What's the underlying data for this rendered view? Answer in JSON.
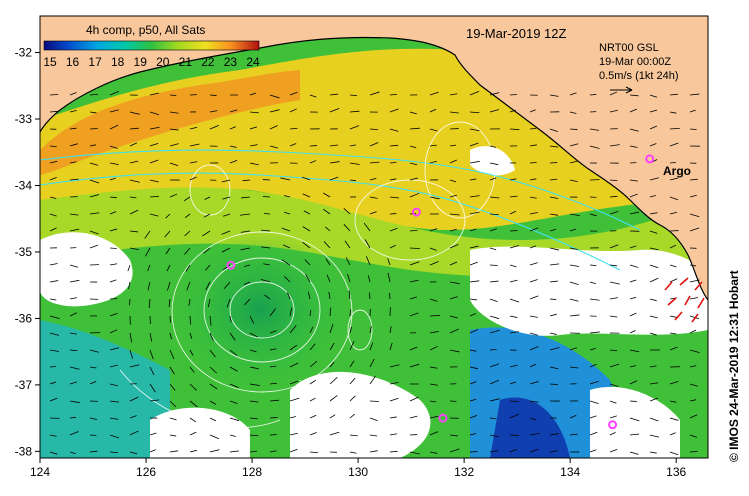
{
  "colorbar": {
    "title": "4h comp, p50, All Sats",
    "ticks": [
      "15",
      "16",
      "17",
      "18",
      "19",
      "20",
      "21",
      "22",
      "23",
      "24"
    ],
    "colors": [
      "#1f1fa0",
      "#0060d0",
      "#00a6d8",
      "#00c8a0",
      "#30c040",
      "#90d020",
      "#e8e020",
      "#f8b818",
      "#f07018",
      "#c02010"
    ]
  },
  "date_label": "19-Mar-2019 12Z",
  "current_legend": {
    "line1": "NRT00 GSL",
    "line2": "19-Mar 00:00Z",
    "line3": "0.5m/s (1kt 24h)"
  },
  "argo_label": "Argo",
  "footer_credit": "© IMOS 24-Mar-2019 12:31 Hobart",
  "axes": {
    "x_ticks": [
      "124",
      "126",
      "128",
      "130",
      "132",
      "134",
      "136"
    ],
    "y_ticks": [
      "-32",
      "-33",
      "-34",
      "-35",
      "-36",
      "-37",
      "-38"
    ]
  },
  "colors": {
    "land": "#f8c89c",
    "ocean_warm": "#f0a020",
    "ocean_mid": "#b8d820",
    "ocean_cool": "#40c030",
    "ocean_cold": "#20a0d8",
    "cloud": "#ffffff",
    "argo": "#ff40ff"
  },
  "argo_floats": [
    {
      "lon": 135.5,
      "lat": -33.6
    },
    {
      "lon": 131.1,
      "lat": -34.4
    },
    {
      "lon": 127.6,
      "lat": -35.2
    },
    {
      "lon": 131.6,
      "lat": -37.5
    },
    {
      "lon": 134.8,
      "lat": -37.6
    }
  ]
}
